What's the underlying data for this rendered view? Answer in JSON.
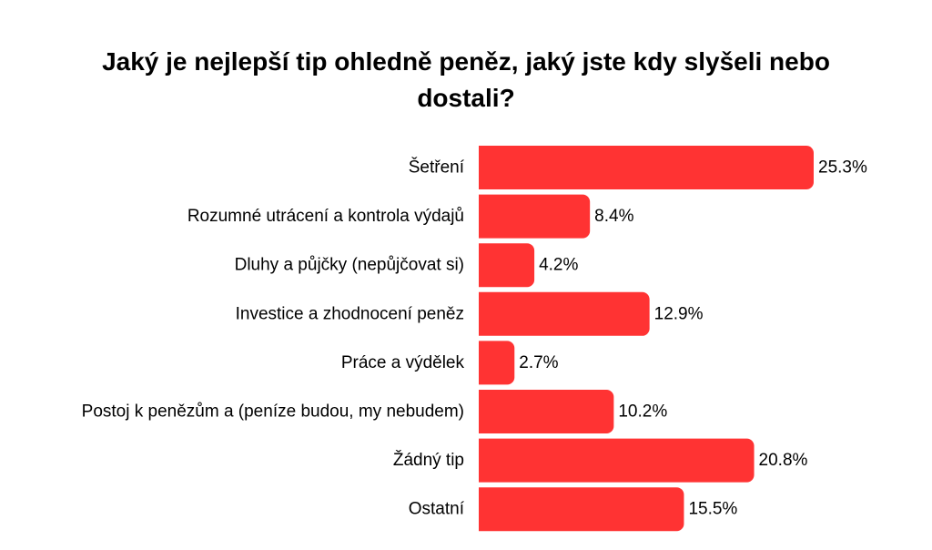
{
  "chart_data": {
    "type": "bar",
    "orientation": "horizontal",
    "title": "Jaký je nejlepší tip ohledně peněz, jaký jste kdy slyšeli nebo dostali?",
    "categories": [
      "Šetření",
      "Rozumné utrácení a kontrola výdajů",
      "Dluhy a půjčky (nepůjčovat si)",
      "Investice a zhodnocení peněz",
      "Práce a výdělek",
      "Postoj k penězům a (peníze budou, my nebudem)",
      "Žádný tip",
      "Ostatní"
    ],
    "values": [
      25.3,
      8.4,
      4.2,
      12.9,
      2.7,
      10.2,
      20.8,
      15.5
    ],
    "value_labels": [
      "25.3%",
      "8.4%",
      "4.2%",
      "12.9%",
      "2.7%",
      "10.2%",
      "20.8%",
      "15.5%"
    ],
    "unit": "%",
    "xlim": [
      0,
      25.3
    ],
    "grid": false,
    "legend": "none",
    "bar_color": "#ff3333"
  }
}
